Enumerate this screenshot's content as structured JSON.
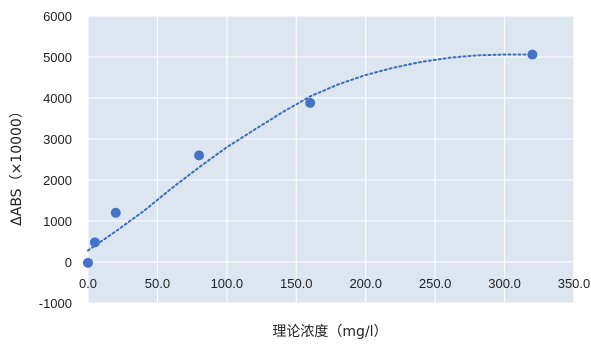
{
  "chart_data": {
    "type": "scatter",
    "xlabel": "理论浓度（mg/l）",
    "ylabel": "ΔABS（×10000）",
    "xlim": [
      0,
      350
    ],
    "ylim": [
      -1000,
      6000
    ],
    "x_ticks": [
      "0.0",
      "50.0",
      "100.0",
      "150.0",
      "200.0",
      "250.0",
      "300.0",
      "350.0"
    ],
    "y_ticks": [
      "-1000",
      "0",
      "1000",
      "2000",
      "3000",
      "4000",
      "5000",
      "6000"
    ],
    "grid": true,
    "legend": "none",
    "series": [
      {
        "x": [
          0,
          5,
          20,
          80,
          160,
          320
        ],
        "y": [
          -20,
          480,
          1200,
          2600,
          3880,
          5060
        ],
        "color": "#4472C4",
        "marker": "circle"
      }
    ],
    "trendline": {
      "style": "dotted",
      "color": "#3E6DB5",
      "x": [
        0,
        20,
        40,
        60,
        80,
        100,
        120,
        140,
        160,
        180,
        200,
        220,
        240,
        260,
        280,
        300,
        320
      ],
      "y": [
        280,
        750,
        1240,
        1790,
        2310,
        2800,
        3230,
        3650,
        4040,
        4330,
        4560,
        4740,
        4880,
        4980,
        5040,
        5060,
        5060
      ]
    },
    "plot_background": "#DCE6F1",
    "gridline_color": "#FFFFFF"
  }
}
